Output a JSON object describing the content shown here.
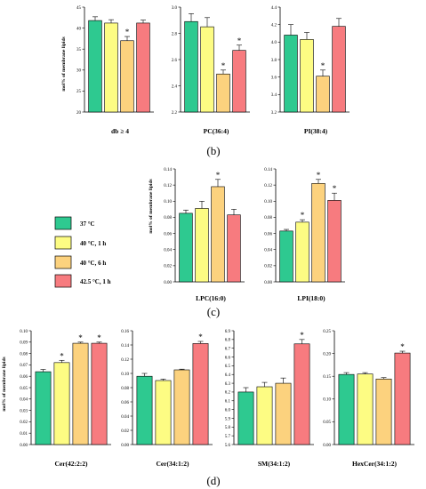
{
  "colors": {
    "37": "#2ec990",
    "40_1h": "#fdfc83",
    "40_6h": "#fcd27e",
    "42_1h": "#f77b7f"
  },
  "legend": [
    {
      "key": "37",
      "label": "37 °C"
    },
    {
      "key": "40_1h",
      "label": "40 °C, 1 h"
    },
    {
      "key": "40_6h",
      "label": "40 °C, 6 h"
    },
    {
      "key": "42_1h",
      "label": "42.5 °C, 1 h"
    }
  ],
  "ylabel": "mol% of membrane lipids",
  "panel_labels": {
    "b": "(b)",
    "c": "(c)",
    "d": "(d)"
  },
  "chart_data": [
    {
      "type": "bar",
      "panel": "b",
      "xlabel": "db ≥ 4",
      "ylim": [
        20,
        45
      ],
      "ticks": [
        "20",
        "25",
        "30",
        "35",
        "40",
        "45"
      ],
      "series_order": [
        "37",
        "40_1h",
        "40_6h",
        "42_1h"
      ],
      "values": [
        41.8,
        41.2,
        37.0,
        41.2
      ],
      "errors": [
        0.9,
        0.8,
        1.0,
        0.7
      ],
      "significant": [
        false,
        false,
        true,
        false
      ]
    },
    {
      "type": "bar",
      "panel": "b",
      "xlabel": "PC(36:4)",
      "ylim": [
        2.2,
        3.0
      ],
      "ticks": [
        "2.2",
        "2.4",
        "2.6",
        "2.8",
        "3.0"
      ],
      "series_order": [
        "37",
        "40_1h",
        "40_6h",
        "42_1h"
      ],
      "values": [
        2.89,
        2.85,
        2.49,
        2.67
      ],
      "errors": [
        0.06,
        0.07,
        0.03,
        0.04
      ],
      "significant": [
        false,
        false,
        true,
        true
      ]
    },
    {
      "type": "bar",
      "panel": "b",
      "xlabel": "PI(38:4)",
      "ylim": [
        3.2,
        4.4
      ],
      "ticks": [
        "3.2",
        "3.4",
        "3.6",
        "3.8",
        "4.0",
        "4.2",
        "4.4"
      ],
      "series_order": [
        "37",
        "40_1h",
        "40_6h",
        "42_1h"
      ],
      "values": [
        4.08,
        4.03,
        3.61,
        4.18
      ],
      "errors": [
        0.12,
        0.08,
        0.07,
        0.09
      ],
      "significant": [
        false,
        false,
        true,
        false
      ]
    },
    {
      "type": "bar",
      "panel": "c",
      "xlabel": "LPC(16:0)",
      "ylim": [
        0,
        0.14
      ],
      "ticks": [
        "0.00",
        "0.02",
        "0.04",
        "0.06",
        "0.08",
        "0.10",
        "0.12",
        "0.14"
      ],
      "series_order": [
        "37",
        "40_1h",
        "40_6h",
        "42_1h"
      ],
      "values": [
        0.085,
        0.091,
        0.118,
        0.083
      ],
      "errors": [
        0.004,
        0.009,
        0.009,
        0.007
      ],
      "significant": [
        false,
        false,
        true,
        false
      ]
    },
    {
      "type": "bar",
      "panel": "c",
      "xlabel": "LPI(18:0)",
      "ylim": [
        0,
        0.14
      ],
      "ticks": [
        "0.00",
        "0.02",
        "0.04",
        "0.06",
        "0.08",
        "0.10",
        "0.12",
        "0.14"
      ],
      "series_order": [
        "37",
        "40_1h",
        "40_6h",
        "42_1h"
      ],
      "values": [
        0.063,
        0.074,
        0.122,
        0.101
      ],
      "errors": [
        0.002,
        0.003,
        0.005,
        0.009
      ],
      "significant": [
        false,
        true,
        true,
        true
      ]
    },
    {
      "type": "bar",
      "panel": "d",
      "xlabel": "Cer(42:2:2)",
      "ylim": [
        0,
        0.1
      ],
      "ticks": [
        "0.00",
        "0.01",
        "0.02",
        "0.03",
        "0.04",
        "0.05",
        "0.06",
        "0.07",
        "0.08",
        "0.09",
        "0.10"
      ],
      "series_order": [
        "37",
        "40_1h",
        "40_6h",
        "42_1h"
      ],
      "values": [
        0.064,
        0.072,
        0.089,
        0.089
      ],
      "errors": [
        0.002,
        0.002,
        0.001,
        0.001
      ],
      "significant": [
        false,
        true,
        true,
        true
      ]
    },
    {
      "type": "bar",
      "panel": "d",
      "xlabel": "Cer(34:1:2)",
      "ylim": [
        0,
        0.16
      ],
      "ticks": [
        "0.00",
        "0.02",
        "0.04",
        "0.06",
        "0.08",
        "0.10",
        "0.12",
        "0.14",
        "0.16"
      ],
      "series_order": [
        "37",
        "40_1h",
        "40_6h",
        "42_1h"
      ],
      "values": [
        0.096,
        0.09,
        0.105,
        0.142
      ],
      "errors": [
        0.004,
        0.002,
        0.001,
        0.003
      ],
      "significant": [
        false,
        false,
        false,
        true
      ]
    },
    {
      "type": "bar",
      "panel": "d",
      "xlabel": "SM(34:1:2)",
      "ylim": [
        5.6,
        6.9
      ],
      "ticks": [
        "5.6",
        "5.7",
        "5.8",
        "5.9",
        "6.0",
        "6.1",
        "6.2",
        "6.3",
        "6.4",
        "6.5",
        "6.6",
        "6.7",
        "6.8",
        "6.9"
      ],
      "series_order": [
        "37",
        "40_1h",
        "40_6h",
        "42_1h"
      ],
      "values": [
        6.2,
        6.26,
        6.3,
        6.75
      ],
      "errors": [
        0.05,
        0.05,
        0.06,
        0.05
      ],
      "significant": [
        false,
        false,
        false,
        true
      ]
    },
    {
      "type": "bar",
      "panel": "d",
      "xlabel": "HexCer(34:1:2)",
      "ylim": [
        0,
        0.25
      ],
      "ticks": [
        "0.00",
        "0.05",
        "0.10",
        "0.15",
        "0.20",
        "0.25"
      ],
      "series_order": [
        "37",
        "40_1h",
        "40_6h",
        "42_1h"
      ],
      "values": [
        0.154,
        0.155,
        0.144,
        0.201
      ],
      "errors": [
        0.004,
        0.003,
        0.003,
        0.004
      ],
      "significant": [
        false,
        false,
        false,
        true
      ]
    }
  ]
}
